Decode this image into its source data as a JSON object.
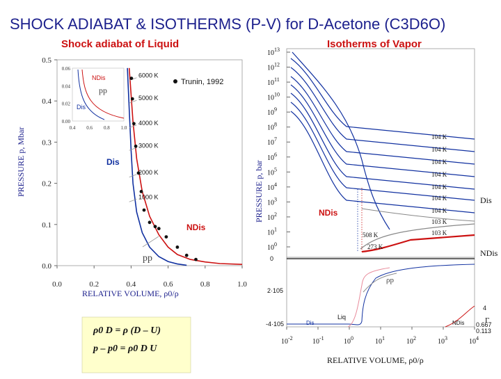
{
  "title": "SHOCK ADIABAT & ISOTHERMS (P-V) for D-Acetone (C3D6O)",
  "colors": {
    "title": "#1b1f8c",
    "blue": "#1030a0",
    "red": "#cc1111",
    "gray": "#888888",
    "pink": "#e88a9a",
    "black": "#111111"
  },
  "formulas": {
    "f1": "ρ0 D = ρ (D – U)",
    "f2": "p – p0 = ρ0 D U"
  },
  "chart_data": [
    {
      "type": "line",
      "title": "Shock adiabat of Liquid",
      "ylabel": "PRESSURE  p, Mbar",
      "xlabel": "RELATIVE VOLUME,  ρ0/ρ",
      "xlim": [
        0.0,
        1.0
      ],
      "ylim": [
        0.0,
        0.5
      ],
      "x_ticks": [
        "0.0",
        "0.2",
        "0.4",
        "0.6",
        "0.8",
        "1.0"
      ],
      "y_ticks": [
        "0.0",
        "0.1",
        "0.2",
        "0.3",
        "0.4",
        "0.5"
      ],
      "legend": "Trunin, 1992",
      "labels": {
        "ndis": "NDis",
        "dis": "Dis",
        "pp": "pp"
      },
      "series": [
        {
          "name": "NDis",
          "color": "#cc1111",
          "x": [
            0.39,
            0.41,
            0.43,
            0.46,
            0.5,
            0.55,
            0.6,
            0.65,
            0.72,
            0.8,
            0.88,
            1.0
          ],
          "y": [
            0.48,
            0.35,
            0.26,
            0.18,
            0.12,
            0.075,
            0.045,
            0.027,
            0.015,
            0.009,
            0.005,
            0.003
          ]
        },
        {
          "name": "Dis",
          "color": "#1030a0",
          "x": [
            0.38,
            0.39,
            0.4,
            0.41,
            0.43,
            0.46,
            0.5,
            0.55,
            0.6,
            0.65,
            0.7
          ],
          "y": [
            0.48,
            0.38,
            0.28,
            0.2,
            0.13,
            0.08,
            0.045,
            0.022,
            0.01,
            0.004,
            0.001
          ]
        }
      ],
      "isotherms": [
        {
          "label": "6000 K",
          "p": 0.46
        },
        {
          "label": "5000 K",
          "p": 0.405
        },
        {
          "label": "4000 K",
          "p": 0.345
        },
        {
          "label": "3000 K",
          "p": 0.29
        },
        {
          "label": "2000 K",
          "p": 0.225
        },
        {
          "label": "1000 K",
          "p": 0.165
        }
      ],
      "trunin_points": [
        {
          "x": 0.402,
          "y": 0.455
        },
        {
          "x": 0.407,
          "y": 0.405
        },
        {
          "x": 0.415,
          "y": 0.345
        },
        {
          "x": 0.425,
          "y": 0.29
        },
        {
          "x": 0.44,
          "y": 0.225
        },
        {
          "x": 0.455,
          "y": 0.18
        },
        {
          "x": 0.47,
          "y": 0.135
        },
        {
          "x": 0.5,
          "y": 0.105
        },
        {
          "x": 0.53,
          "y": 0.095
        },
        {
          "x": 0.55,
          "y": 0.09
        },
        {
          "x": 0.59,
          "y": 0.07
        },
        {
          "x": 0.65,
          "y": 0.045
        },
        {
          "x": 0.7,
          "y": 0.025
        },
        {
          "x": 0.75,
          "y": 0.015
        }
      ],
      "inset": {
        "xlim": [
          0.4,
          1.0
        ],
        "ylim": [
          0.0,
          0.06
        ],
        "x_ticks": [
          "0.4",
          "0.6",
          "0.8",
          "1.0"
        ],
        "y_ticks": [
          "0.00",
          "0.02",
          "0.04",
          "0.06"
        ],
        "labels": {
          "ndis": "NDis",
          "dis": "Dis",
          "pp": "pp"
        }
      }
    },
    {
      "type": "line",
      "title": "Isotherms of Vapor",
      "ylabel": "PRESSURE  p, bar",
      "xlabel": "RELATIVE VOLUME,  ρ0/ρ",
      "xscale": "log",
      "yscale": "log",
      "x_ticks": [
        "10-2",
        "10-1",
        "100",
        "101",
        "102",
        "103",
        "104"
      ],
      "y_ticks": [
        "1013",
        "1012",
        "1011",
        "1010",
        "109",
        "108",
        "107",
        "106",
        "105",
        "104",
        "103",
        "102",
        "101",
        "100"
      ],
      "isotherm_labels": [
        "104 K",
        "104 K",
        "104 K",
        "104 K",
        "104 K",
        "104 K",
        "104 K",
        "103 K",
        "103 K"
      ],
      "labels": {
        "dis": "Dis",
        "ndis_side": "NDis",
        "ndis_red": "NDis",
        "liq": "Liq",
        "rp": "ρp",
        "t508": "508 K",
        "t273": "273 K"
      },
      "gamma_panel": {
        "left_ticks": [
          "0",
          "2·105",
          "-4·105"
        ],
        "right_values": [
          "4",
          "0.667",
          "0.113"
        ],
        "gamma_label": "Γ",
        "dis": "Dis",
        "ndis": "NDis"
      }
    }
  ]
}
